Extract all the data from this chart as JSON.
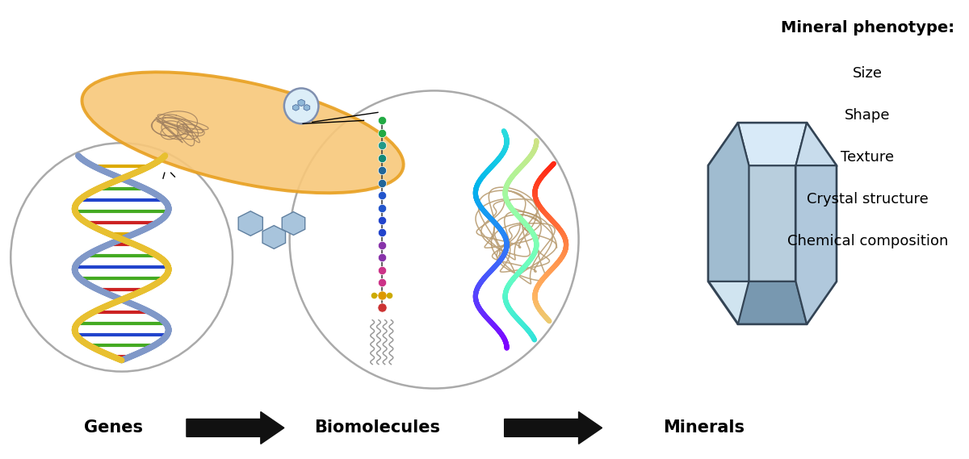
{
  "title_text": "Mineral phenotype:",
  "phenotype_items": [
    "Size",
    "Shape",
    "Texture",
    "Crystal structure",
    "Chemical composition"
  ],
  "bottom_labels": [
    "Genes",
    "Biomolecules",
    "Minerals"
  ],
  "arrow_color": "#111111",
  "background_color": "#ffffff",
  "cell_fill": "#f8c87a",
  "cell_edge": "#e8a020",
  "circle_edge": "#aaaaaa",
  "dna_strand1": "#8098c8",
  "dna_strand2": "#e8c030",
  "dna_bp_red": "#cc2222",
  "dna_bp_green": "#44aa22",
  "dna_bp_blue": "#2244cc",
  "dna_bp_yellow": "#ddaa00",
  "tangle_color": "#a08060",
  "mineral_light": "#d0e4f0",
  "mineral_mid": "#a0bcd0",
  "mineral_dark": "#7898b0",
  "mineral_edge": "#334455",
  "crystal_in_cell_fill": "#b8d0e8",
  "crystal_in_cell_edge": "#6080a0"
}
